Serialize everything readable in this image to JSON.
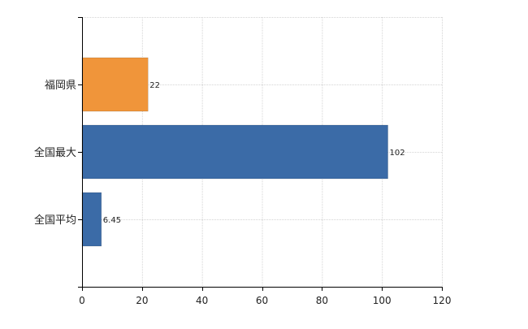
{
  "chart_data": {
    "type": "bar",
    "orientation": "horizontal",
    "categories": [
      "福岡県",
      "全国最大",
      "全国平均"
    ],
    "values": [
      22,
      102,
      6.45
    ],
    "value_labels": [
      "22",
      "102",
      "6.45"
    ],
    "bar_colors": [
      "#f0953a",
      "#3b6ba7",
      "#3b6ba7"
    ],
    "xlim": [
      0,
      120
    ],
    "xticks": [
      0,
      20,
      40,
      60,
      80,
      100,
      120
    ],
    "grid": true,
    "title": "",
    "xlabel": "",
    "ylabel": ""
  }
}
